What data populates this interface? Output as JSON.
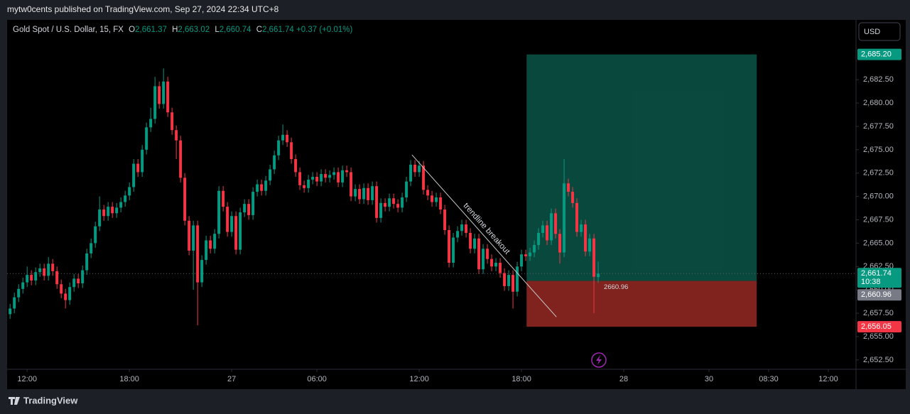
{
  "header": "mytw0cents published on TradingView.com, Sep 27, 2024 22:34 UTC+8",
  "footer_brand": "TradingView",
  "currency": "USD",
  "chart_data": {
    "type": "candlestick",
    "legend": {
      "symbol": "Gold Spot / U.S. Dollar, 15, FX",
      "items": [
        {
          "key": "O",
          "value": "2,661.37"
        },
        {
          "key": "H",
          "value": "2,663.02"
        },
        {
          "key": "L",
          "value": "2,660.74"
        },
        {
          "key": "C",
          "value": "2,661.74"
        }
      ],
      "change": "+0.37 (+0.01%)"
    },
    "up_color": "#089981",
    "down_color": "#f23645",
    "xlim": [
      -0.7,
      198.5
    ],
    "xticks": [
      {
        "value": 4,
        "label": "12:00"
      },
      {
        "value": 28,
        "label": "18:00"
      },
      {
        "value": 52,
        "label": "27"
      },
      {
        "value": 72,
        "label": "06:00"
      },
      {
        "value": 96,
        "label": "12:00"
      },
      {
        "value": 120,
        "label": "18:00"
      },
      {
        "value": 144,
        "label": "28"
      },
      {
        "value": 164,
        "label": "30"
      },
      {
        "value": 178,
        "label": "08:30"
      },
      {
        "value": 192,
        "label": "12:00"
      }
    ],
    "ylim": [
      2651.5,
      2688.9
    ],
    "yticks": [
      {
        "value": 2652.5,
        "label": "2,652.50"
      },
      {
        "value": 2655,
        "label": "2,655.00"
      },
      {
        "value": 2657.5,
        "label": "2,657.50"
      },
      {
        "value": 2660,
        "label": "2,660.00"
      },
      {
        "value": 2662.5,
        "label": "2,662.50"
      },
      {
        "value": 2665,
        "label": "2,665.00"
      },
      {
        "value": 2667.5,
        "label": "2,667.50"
      },
      {
        "value": 2670,
        "label": "2,670.00"
      },
      {
        "value": 2672.5,
        "label": "2,672.50"
      },
      {
        "value": 2675,
        "label": "2,675.00"
      },
      {
        "value": 2677.5,
        "label": "2,677.50"
      },
      {
        "value": 2680,
        "label": "2,680.00"
      },
      {
        "value": 2682.5,
        "label": "2,682.50"
      }
    ],
    "candles": [
      [
        2657.4,
        2658.5,
        2656.9,
        2658.0
      ],
      [
        2658.0,
        2659.7,
        2657.5,
        2659.2
      ],
      [
        2659.2,
        2660.6,
        2658.7,
        2660.1
      ],
      [
        2660.1,
        2661.3,
        2659.6,
        2660.8
      ],
      [
        2660.8,
        2662.5,
        2660.3,
        2661.6
      ],
      [
        2661.6,
        2662.1,
        2660.5,
        2661.0
      ],
      [
        2661.0,
        2662.4,
        2660.5,
        2661.9
      ],
      [
        2661.9,
        2662.8,
        2661.4,
        2662.3
      ],
      [
        2662.3,
        2662.8,
        2661.0,
        2661.5
      ],
      [
        2661.5,
        2663.5,
        2661.0,
        2662.8
      ],
      [
        2662.8,
        2663.3,
        2661.5,
        2662.0
      ],
      [
        2662.0,
        2662.5,
        2660.1,
        2660.6
      ],
      [
        2660.6,
        2661.1,
        2659.1,
        2659.6
      ],
      [
        2659.6,
        2660.1,
        2658.0,
        2658.9
      ],
      [
        2658.9,
        2660.8,
        2658.4,
        2660.3
      ],
      [
        2660.3,
        2661.7,
        2659.8,
        2661.2
      ],
      [
        2661.2,
        2661.7,
        2660.2,
        2660.7
      ],
      [
        2660.7,
        2662.6,
        2660.2,
        2662.1
      ],
      [
        2662.1,
        2664.4,
        2661.6,
        2663.9
      ],
      [
        2663.9,
        2665.5,
        2663.4,
        2665.0
      ],
      [
        2665.0,
        2667.3,
        2664.5,
        2666.8
      ],
      [
        2666.8,
        2670.0,
        2666.3,
        2668.6
      ],
      [
        2668.6,
        2669.1,
        2667.4,
        2667.9
      ],
      [
        2667.9,
        2669.4,
        2667.4,
        2668.9
      ],
      [
        2668.9,
        2669.4,
        2667.7,
        2668.2
      ],
      [
        2668.2,
        2669.3,
        2667.7,
        2668.8
      ],
      [
        2668.8,
        2669.9,
        2668.3,
        2669.4
      ],
      [
        2669.4,
        2670.6,
        2668.9,
        2670.1
      ],
      [
        2670.1,
        2671.5,
        2669.6,
        2671.0
      ],
      [
        2671.0,
        2674.0,
        2670.5,
        2673.5
      ],
      [
        2673.5,
        2674.0,
        2672.1,
        2672.6
      ],
      [
        2672.6,
        2675.5,
        2672.1,
        2675.0
      ],
      [
        2675.0,
        2677.9,
        2674.5,
        2677.4
      ],
      [
        2677.4,
        2679.5,
        2676.9,
        2678.3
      ],
      [
        2678.3,
        2682.8,
        2677.8,
        2681.8
      ],
      [
        2681.8,
        2682.3,
        2679.4,
        2679.9
      ],
      [
        2679.9,
        2683.7,
        2679.4,
        2682.3
      ],
      [
        2682.3,
        2682.8,
        2678.5,
        2679.0
      ],
      [
        2679.0,
        2679.5,
        2676.6,
        2677.1
      ],
      [
        2677.1,
        2677.6,
        2674.0,
        2676.0
      ],
      [
        2676.0,
        2676.5,
        2671.5,
        2672.0
      ],
      [
        2672.0,
        2672.5,
        2666.9,
        2667.4
      ],
      [
        2667.4,
        2667.9,
        2663.7,
        2664.2
      ],
      [
        2664.2,
        2667.4,
        2660.0,
        2666.9
      ],
      [
        2666.9,
        2667.4,
        2656.2,
        2660.8
      ],
      [
        2660.8,
        2663.7,
        2660.3,
        2663.2
      ],
      [
        2663.2,
        2665.8,
        2662.7,
        2665.3
      ],
      [
        2665.3,
        2665.8,
        2663.9,
        2664.4
      ],
      [
        2664.4,
        2666.5,
        2663.9,
        2666.0
      ],
      [
        2666.0,
        2671.1,
        2665.5,
        2670.6
      ],
      [
        2670.6,
        2671.1,
        2668.4,
        2668.9
      ],
      [
        2668.9,
        2669.4,
        2665.7,
        2666.2
      ],
      [
        2666.2,
        2668.4,
        2665.7,
        2667.9
      ],
      [
        2667.9,
        2668.4,
        2663.8,
        2664.3
      ],
      [
        2664.3,
        2668.8,
        2663.8,
        2668.3
      ],
      [
        2668.3,
        2669.7,
        2667.8,
        2669.2
      ],
      [
        2669.2,
        2669.7,
        2667.5,
        2668.0
      ],
      [
        2668.0,
        2671.0,
        2667.5,
        2670.5
      ],
      [
        2670.5,
        2671.8,
        2670.0,
        2671.3
      ],
      [
        2671.3,
        2671.8,
        2670.1,
        2670.6
      ],
      [
        2670.6,
        2672.2,
        2670.1,
        2671.7
      ],
      [
        2671.7,
        2673.4,
        2671.2,
        2672.9
      ],
      [
        2672.9,
        2674.9,
        2672.4,
        2674.4
      ],
      [
        2674.4,
        2676.5,
        2673.9,
        2676.0
      ],
      [
        2676.0,
        2677.7,
        2675.5,
        2676.6
      ],
      [
        2676.6,
        2677.1,
        2675.3,
        2675.8
      ],
      [
        2675.8,
        2676.3,
        2673.5,
        2674.0
      ],
      [
        2674.0,
        2674.5,
        2672.1,
        2672.6
      ],
      [
        2672.6,
        2673.1,
        2670.7,
        2671.2
      ],
      [
        2671.2,
        2671.7,
        2670.4,
        2670.9
      ],
      [
        2670.9,
        2672.3,
        2670.4,
        2671.8
      ],
      [
        2671.8,
        2672.6,
        2671.3,
        2672.1
      ],
      [
        2672.1,
        2672.6,
        2671.1,
        2671.6
      ],
      [
        2671.6,
        2672.9,
        2671.1,
        2672.4
      ],
      [
        2672.4,
        2672.9,
        2671.5,
        2672.0
      ],
      [
        2672.0,
        2672.8,
        2671.5,
        2672.3
      ],
      [
        2672.3,
        2673.1,
        2671.8,
        2672.6
      ],
      [
        2672.6,
        2673.1,
        2671.0,
        2671.5
      ],
      [
        2671.5,
        2673.3,
        2671.0,
        2672.8
      ],
      [
        2672.8,
        2673.3,
        2672.1,
        2672.6
      ],
      [
        2672.6,
        2673.1,
        2669.5,
        2670.0
      ],
      [
        2670.0,
        2671.3,
        2669.5,
        2670.8
      ],
      [
        2670.8,
        2671.3,
        2669.2,
        2669.7
      ],
      [
        2669.7,
        2671.4,
        2669.2,
        2670.9
      ],
      [
        2670.9,
        2671.4,
        2669.1,
        2669.6
      ],
      [
        2669.6,
        2671.6,
        2669.1,
        2671.1
      ],
      [
        2671.1,
        2671.6,
        2667.2,
        2667.7
      ],
      [
        2667.7,
        2669.8,
        2667.2,
        2669.3
      ],
      [
        2669.3,
        2669.8,
        2668.4,
        2668.9
      ],
      [
        2668.9,
        2670.3,
        2668.4,
        2669.8
      ],
      [
        2669.8,
        2670.3,
        2668.7,
        2669.2
      ],
      [
        2669.2,
        2669.7,
        2668.3,
        2668.8
      ],
      [
        2668.8,
        2670.4,
        2668.3,
        2669.9
      ],
      [
        2669.9,
        2672.1,
        2669.4,
        2671.6
      ],
      [
        2671.6,
        2673.9,
        2671.1,
        2673.4
      ],
      [
        2673.4,
        2673.9,
        2672.1,
        2672.6
      ],
      [
        2672.6,
        2673.8,
        2672.1,
        2673.3
      ],
      [
        2673.3,
        2673.8,
        2670.2,
        2670.7
      ],
      [
        2670.7,
        2671.2,
        2669.6,
        2670.1
      ],
      [
        2670.1,
        2670.6,
        2668.9,
        2669.4
      ],
      [
        2669.4,
        2670.4,
        2668.9,
        2669.9
      ],
      [
        2669.9,
        2670.4,
        2668.1,
        2668.6
      ],
      [
        2668.6,
        2669.1,
        2665.9,
        2666.4
      ],
      [
        2666.4,
        2666.9,
        2662.4,
        2662.9
      ],
      [
        2662.9,
        2666.1,
        2662.4,
        2665.6
      ],
      [
        2665.6,
        2666.8,
        2665.1,
        2666.3
      ],
      [
        2666.3,
        2667.5,
        2665.8,
        2667.0
      ],
      [
        2667.0,
        2667.5,
        2665.6,
        2666.1
      ],
      [
        2666.1,
        2666.6,
        2663.9,
        2664.4
      ],
      [
        2664.4,
        2666.0,
        2663.9,
        2665.5
      ],
      [
        2665.5,
        2666.0,
        2661.7,
        2662.2
      ],
      [
        2662.2,
        2664.9,
        2661.7,
        2664.4
      ],
      [
        2664.4,
        2664.9,
        2662.8,
        2663.3
      ],
      [
        2663.3,
        2663.8,
        2662.0,
        2662.5
      ],
      [
        2662.5,
        2663.4,
        2662.0,
        2662.9
      ],
      [
        2662.9,
        2663.4,
        2661.3,
        2661.8
      ],
      [
        2661.8,
        2662.3,
        2659.9,
        2660.4
      ],
      [
        2660.4,
        2662.1,
        2659.9,
        2661.6
      ],
      [
        2661.6,
        2662.1,
        2658.0,
        2659.8
      ],
      [
        2659.8,
        2663.0,
        2659.3,
        2662.5
      ],
      [
        2662.5,
        2664.3,
        2662.0,
        2663.8
      ],
      [
        2663.8,
        2664.3,
        2663.1,
        2663.6
      ],
      [
        2663.6,
        2664.5,
        2663.1,
        2664.0
      ],
      [
        2664.0,
        2665.3,
        2663.5,
        2664.8
      ],
      [
        2664.8,
        2666.6,
        2664.3,
        2666.1
      ],
      [
        2666.1,
        2667.4,
        2665.6,
        2666.9
      ],
      [
        2666.9,
        2667.4,
        2664.8,
        2665.3
      ],
      [
        2665.3,
        2668.7,
        2664.8,
        2668.2
      ],
      [
        2668.2,
        2668.7,
        2665.5,
        2666.0
      ],
      [
        2666.0,
        2666.5,
        2662.8,
        2664.0
      ],
      [
        2664.0,
        2674.0,
        2663.5,
        2671.4
      ],
      [
        2671.4,
        2671.9,
        2670.0,
        2670.5
      ],
      [
        2670.5,
        2671.0,
        2668.8,
        2669.3
      ],
      [
        2669.3,
        2669.8,
        2665.7,
        2666.2
      ],
      [
        2666.2,
        2667.5,
        2665.7,
        2667.0
      ],
      [
        2667.0,
        2667.5,
        2663.6,
        2664.1
      ],
      [
        2664.1,
        2666.0,
        2663.6,
        2665.5
      ],
      [
        2665.5,
        2666.0,
        2657.5,
        2661.4
      ],
      [
        2661.37,
        2663.02,
        2660.74,
        2661.74
      ]
    ],
    "position": {
      "start": 121.2,
      "end": 175.2,
      "target": 2685.2,
      "entry": 2660.96,
      "stop": 2656.05,
      "entry_label": "2660.96"
    },
    "trendline": {
      "x": [
        94.3,
        128.2
      ],
      "y": [
        2674.45,
        2657.1
      ],
      "label": "trendline breakout"
    },
    "price_tags": {
      "target": {
        "value": 2685.2,
        "label": "2,685.20"
      },
      "last": {
        "value": 2661.74,
        "label": "2,661.74",
        "countdown": "10:38"
      },
      "entry": {
        "value": 2660.96,
        "label": "2,660.96"
      },
      "stop": {
        "value": 2656.05,
        "label": "2,656.05"
      }
    }
  }
}
